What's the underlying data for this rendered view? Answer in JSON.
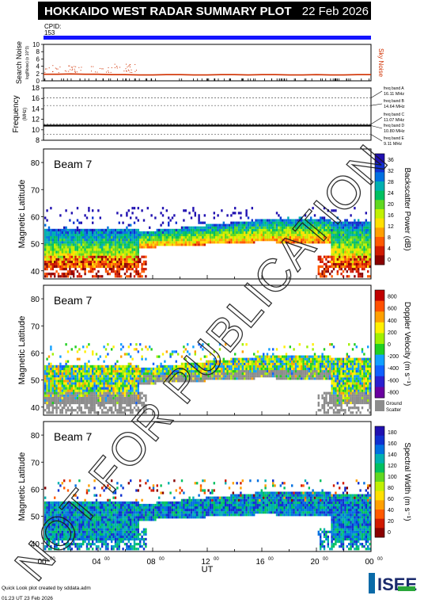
{
  "header": {
    "title": "HOKKAIDO WEST RADAR SUMMARY PLOT",
    "date": "22 Feb 2026",
    "cpid_label": "CPID:",
    "cpid_value": "153"
  },
  "watermark": "NOT FOR PUBLICATION",
  "footer": {
    "credit": "Quick Look plot created by sddata.adm",
    "timestamp": "01:23 UT 23 Feb 2026",
    "logo_text": "ISEE"
  },
  "colors": {
    "cpid_bar": "#1414ff",
    "noise_line": "#d03000",
    "ground_scatter": "#8c8c8c"
  },
  "chart_data": [
    {
      "id": "noise",
      "type": "line",
      "ylabel": "Search Noise",
      "ylabel_sub": "log(Noise) (x 10^3)",
      "ylim": [
        0,
        10
      ],
      "yticks": [
        "0",
        "2",
        "4",
        "6",
        "8",
        "10"
      ],
      "legend_right": "Sky Noise",
      "series": [
        {
          "name": "Sky Noise",
          "x": [
            0,
            1,
            2,
            3,
            4,
            5,
            6,
            7,
            8,
            9,
            10,
            11,
            12,
            13,
            14,
            15,
            16,
            17,
            18,
            19,
            20,
            21,
            22,
            23,
            24
          ],
          "values": [
            1.8,
            1.8,
            1.9,
            1.8,
            1.8,
            1.7,
            1.7,
            1.6,
            1.6,
            1.7,
            1.7,
            1.6,
            1.6,
            1.7,
            1.7,
            1.6,
            1.7,
            1.7,
            1.6,
            1.6,
            1.7,
            1.6,
            1.6,
            1.7,
            1.7
          ]
        }
      ]
    },
    {
      "id": "frequency",
      "type": "line",
      "ylabel": "Frequency",
      "ylabel_sub": "(MHz)",
      "ylim": [
        8,
        18
      ],
      "yticks": [
        "8",
        "10",
        "12",
        "14",
        "16",
        "18"
      ],
      "freq_bands": [
        {
          "label": "freq band A",
          "value": "16.11 MHz",
          "f": 16.11
        },
        {
          "label": "freq band B",
          "value": "14.64 MHz",
          "f": 14.64
        },
        {
          "label": "freq band C",
          "value": "11.07 MHz",
          "f": 11.07
        },
        {
          "label": "freq band D",
          "value": "10.80 MHz",
          "f": 10.8
        },
        {
          "label": "freq band E",
          "value": "9.11 MHz",
          "f": 9.11
        }
      ],
      "series": [
        {
          "name": "Operating frequency",
          "x": [
            0,
            24
          ],
          "values": [
            10.8,
            10.8
          ]
        }
      ]
    },
    {
      "id": "power",
      "type": "heatmap",
      "beam_label": "Beam",
      "beam": "7",
      "ylabel": "Magnetic Latitude",
      "ylim": [
        37,
        85
      ],
      "yticks": [
        "40",
        "50",
        "60",
        "70",
        "80"
      ],
      "colorbar_label": "Backscatter Power (dB)",
      "colorbar_ticks": [
        "0",
        "4",
        "8",
        "12",
        "16",
        "20",
        "24",
        "28",
        "32",
        "36"
      ]
    },
    {
      "id": "velocity",
      "type": "heatmap",
      "beam_label": "Beam",
      "beam": "7",
      "ylabel": "Magnetic Latitude",
      "ylim": [
        37,
        85
      ],
      "yticks": [
        "40",
        "50",
        "60",
        "70",
        "80"
      ],
      "colorbar_label": "Doppler Velocity (m s⁻¹)",
      "colorbar_ticks": [
        "800",
        "600",
        "400",
        "200",
        "0",
        "-200",
        "-400",
        "-600",
        "-800"
      ],
      "ground_label_1": "Ground",
      "ground_label_2": "Scatter"
    },
    {
      "id": "width",
      "type": "heatmap",
      "beam_label": "Beam",
      "beam": "7",
      "ylabel": "Magnetic Latitude",
      "ylim": [
        37,
        85
      ],
      "yticks": [
        "40",
        "50",
        "60",
        "70",
        "80"
      ],
      "colorbar_label": "Spectral Width (m s⁻¹)",
      "colorbar_ticks": [
        "0",
        "20",
        "40",
        "60",
        "80",
        "100",
        "120",
        "140",
        "160",
        "180"
      ],
      "xlabel": "UT",
      "xticks": [
        "00",
        "04",
        "08",
        "12",
        "16",
        "20",
        "00"
      ],
      "xtick_sup": "00"
    }
  ]
}
